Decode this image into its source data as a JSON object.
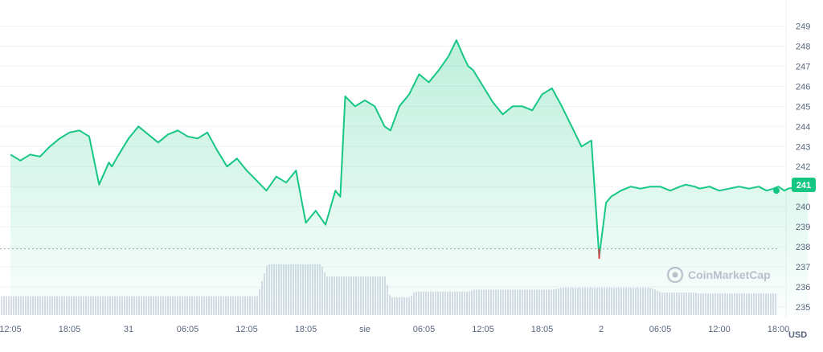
{
  "chart_data": {
    "type": "area",
    "currency_label": "USD",
    "watermark": "CoinMarketCap",
    "current_price_label": "241",
    "current_price": 240.8,
    "min_marker_price": 237.4,
    "reference_price": 237.9,
    "ylim": [
      234.6,
      249.9
    ],
    "yticks": [
      249,
      248,
      247,
      246,
      245,
      244,
      243,
      242,
      241,
      240,
      239,
      238,
      237,
      236,
      235
    ],
    "xticks": [
      "12:05",
      "18:05",
      "31",
      "06:05",
      "12:05",
      "18:05",
      "sie",
      "06:05",
      "12:05",
      "18:05",
      "2",
      "06:05",
      "12:00",
      "18:00"
    ],
    "x_step_hours": 6,
    "price_series": {
      "x_hours": [
        0,
        1.0,
        2.0,
        3.0,
        4.0,
        5.0,
        6.0,
        7.0,
        8.0,
        9.0,
        10.0,
        10.3,
        11.0,
        12.0,
        13.0,
        14.0,
        15.0,
        16.0,
        17.0,
        18.0,
        19.0,
        20.0,
        21.0,
        22.0,
        23.0,
        24.0,
        25.0,
        26.0,
        27.0,
        28.0,
        29.0,
        30.0,
        31.0,
        32.0,
        33.0,
        33.5,
        34.0,
        35.0,
        36.0,
        37.0,
        38.0,
        38.6,
        39.5,
        40.5,
        41.5,
        42.5,
        43.5,
        44.5,
        45.3,
        46.0,
        46.5,
        47.0,
        48.0,
        49.0,
        50.0,
        51.0,
        52.0,
        53.0,
        54.0,
        55.0,
        56.0,
        57.0,
        58.0,
        59.0,
        59.8,
        60.5,
        61.0,
        62.0,
        63.0,
        64.0,
        65.0,
        66.0,
        67.0,
        68.0,
        68.6,
        69.5,
        70.0,
        71.0,
        72.0,
        73.0,
        74.0,
        75.0,
        76.0,
        76.8,
        77.5,
        78.0,
        78.6,
        79.0,
        80.0,
        81.0
      ],
      "values": [
        242.6,
        242.3,
        242.6,
        242.5,
        243.0,
        243.4,
        243.7,
        243.8,
        243.5,
        241.1,
        242.2,
        242.0,
        242.6,
        243.4,
        244.0,
        243.6,
        243.2,
        243.6,
        243.8,
        243.5,
        243.4,
        243.7,
        242.8,
        242.0,
        242.4,
        241.8,
        241.3,
        240.8,
        241.5,
        241.2,
        241.8,
        239.2,
        239.8,
        239.1,
        240.8,
        240.5,
        245.5,
        245.0,
        245.3,
        245.0,
        244.0,
        243.8,
        245.0,
        245.6,
        246.6,
        246.2,
        246.8,
        247.5,
        248.3,
        247.5,
        247.0,
        246.8,
        246.0,
        245.2,
        244.6,
        245.0,
        245.0,
        244.8,
        245.6,
        245.9,
        245.0,
        244.0,
        243.0,
        243.3,
        237.5,
        240.2,
        240.5,
        240.8,
        241.0,
        240.9,
        241.0,
        241.0,
        240.8,
        241.0,
        241.1,
        241.0,
        240.9,
        241.0,
        240.8,
        240.9,
        241.0,
        240.9,
        241.0,
        240.8,
        240.9,
        241.0,
        240.8,
        240.9,
        241.0,
        240.8
      ]
    },
    "volume_series": {
      "x_hours": [
        0,
        25,
        26,
        31.5,
        32,
        38,
        38.5,
        40.5,
        41,
        46.5,
        47,
        55,
        56,
        65,
        66,
        69,
        70,
        81
      ],
      "values": [
        1.0,
        1.0,
        2.7,
        2.7,
        2.05,
        2.05,
        0.95,
        0.95,
        1.25,
        1.25,
        1.35,
        1.35,
        1.45,
        1.45,
        1.2,
        1.2,
        1.15,
        1.15
      ]
    }
  }
}
